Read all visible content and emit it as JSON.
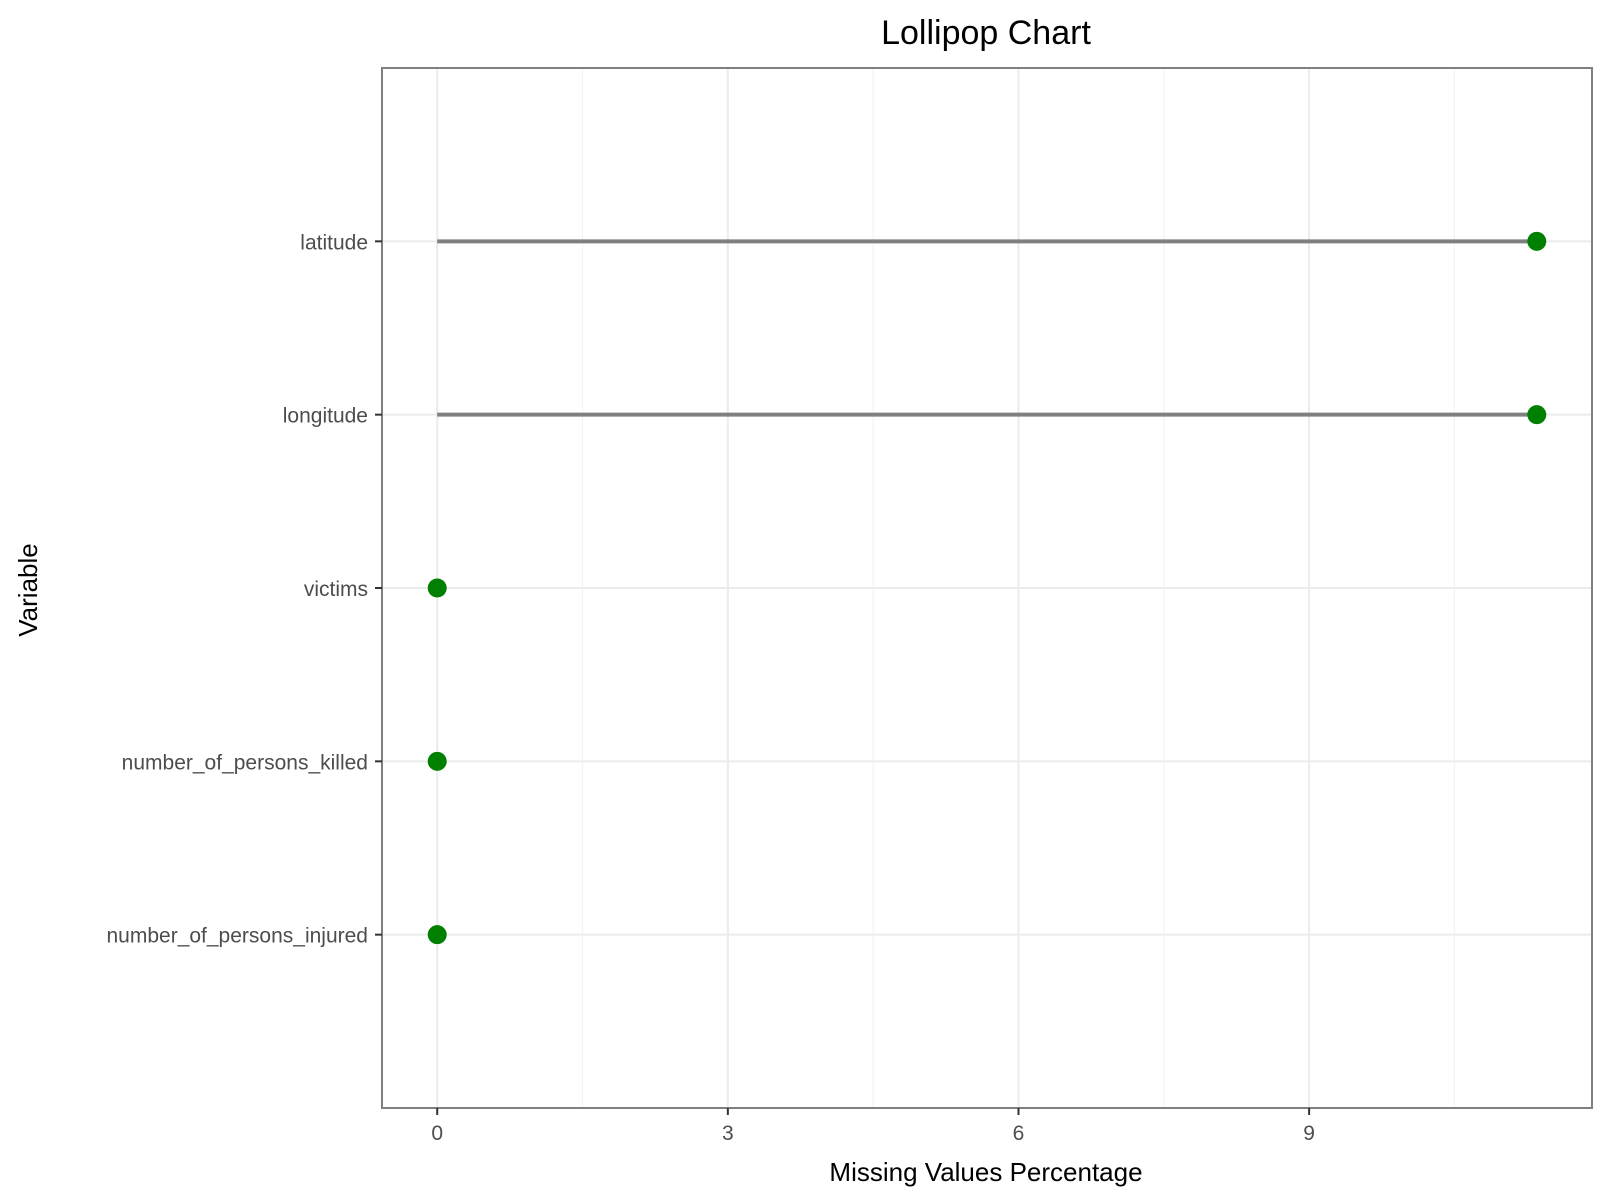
{
  "chart_data": {
    "type": "lollipop",
    "title": "Lollipop Chart",
    "xlabel": "Missing Values Percentage",
    "ylabel": "Variable",
    "categories": [
      "latitude",
      "longitude",
      "victims",
      "number_of_persons_killed",
      "number_of_persons_injured"
    ],
    "values": [
      11.35,
      11.35,
      0,
      0,
      0
    ],
    "xticks": [
      0,
      3,
      6,
      9
    ],
    "xlim": [
      -0.57,
      11.92
    ],
    "grid": true,
    "legend": "none",
    "colors": {
      "point": "#008000",
      "stem": "#7f7f7f",
      "grid": "#ebebeb",
      "border": "#7f7f7f"
    }
  }
}
